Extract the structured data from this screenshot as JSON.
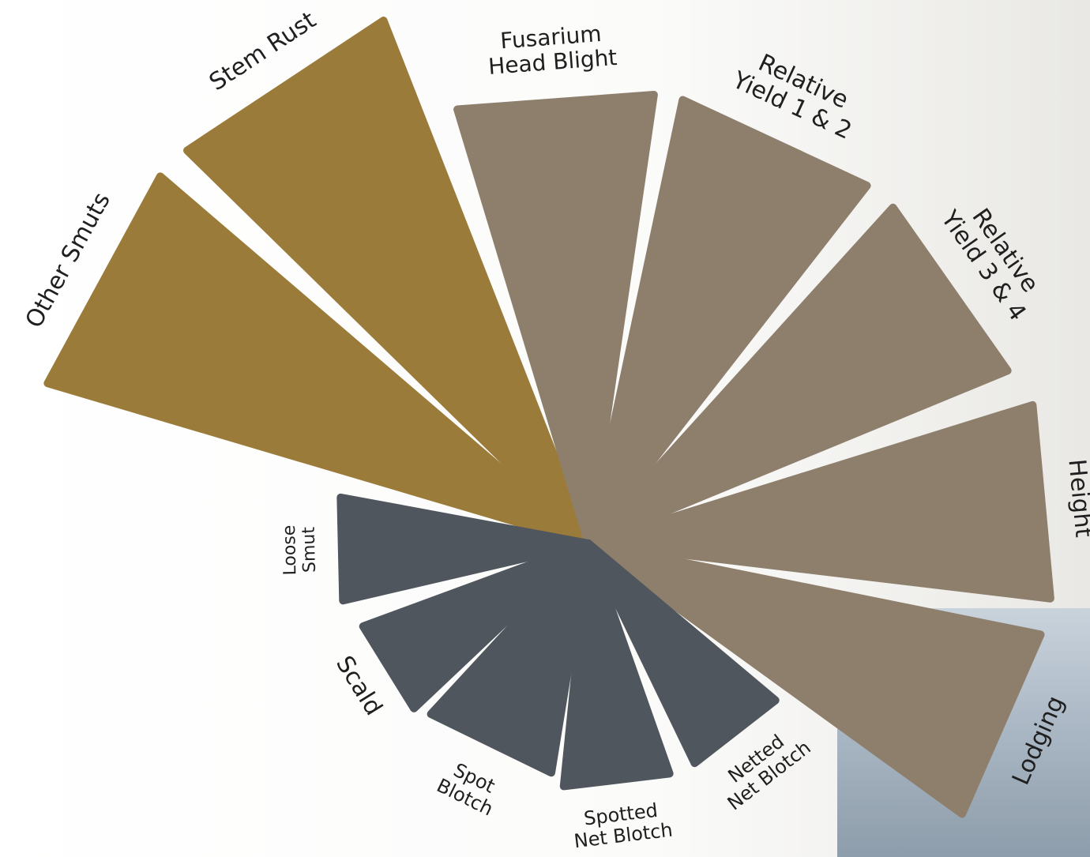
{
  "items": [
    {
      "lines": [
        "Other Smuts"
      ],
      "color": "#9a7b3a"
    },
    {
      "lines": [
        "Stem Rust"
      ],
      "color": "#9a7b3a"
    },
    {
      "lines": [
        "Fusarium",
        "Head Blight"
      ],
      "color": "#8e7f6c"
    },
    {
      "lines": [
        "Relative",
        "Yield 1 & 2"
      ],
      "color": "#8e7f6c"
    },
    {
      "lines": [
        "Relative",
        "Yield 3 & 4"
      ],
      "color": "#8e7f6c"
    },
    {
      "lines": [
        "Height"
      ],
      "color": "#8e7f6c"
    },
    {
      "lines": [
        "Lodging"
      ],
      "color": "#8e7f6c"
    },
    {
      "lines": [
        "Netted",
        "Net Blotch"
      ],
      "color": "#50565d"
    },
    {
      "lines": [
        "Spotted",
        "Net Blotch"
      ],
      "color": "#50565d"
    },
    {
      "lines": [
        "Spot",
        "Blotch"
      ],
      "color": "#50565d"
    },
    {
      "lines": [
        "Scald"
      ],
      "color": "#50565d"
    },
    {
      "lines": [
        "Loose",
        "Smut"
      ],
      "color": "#50565d"
    }
  ]
}
